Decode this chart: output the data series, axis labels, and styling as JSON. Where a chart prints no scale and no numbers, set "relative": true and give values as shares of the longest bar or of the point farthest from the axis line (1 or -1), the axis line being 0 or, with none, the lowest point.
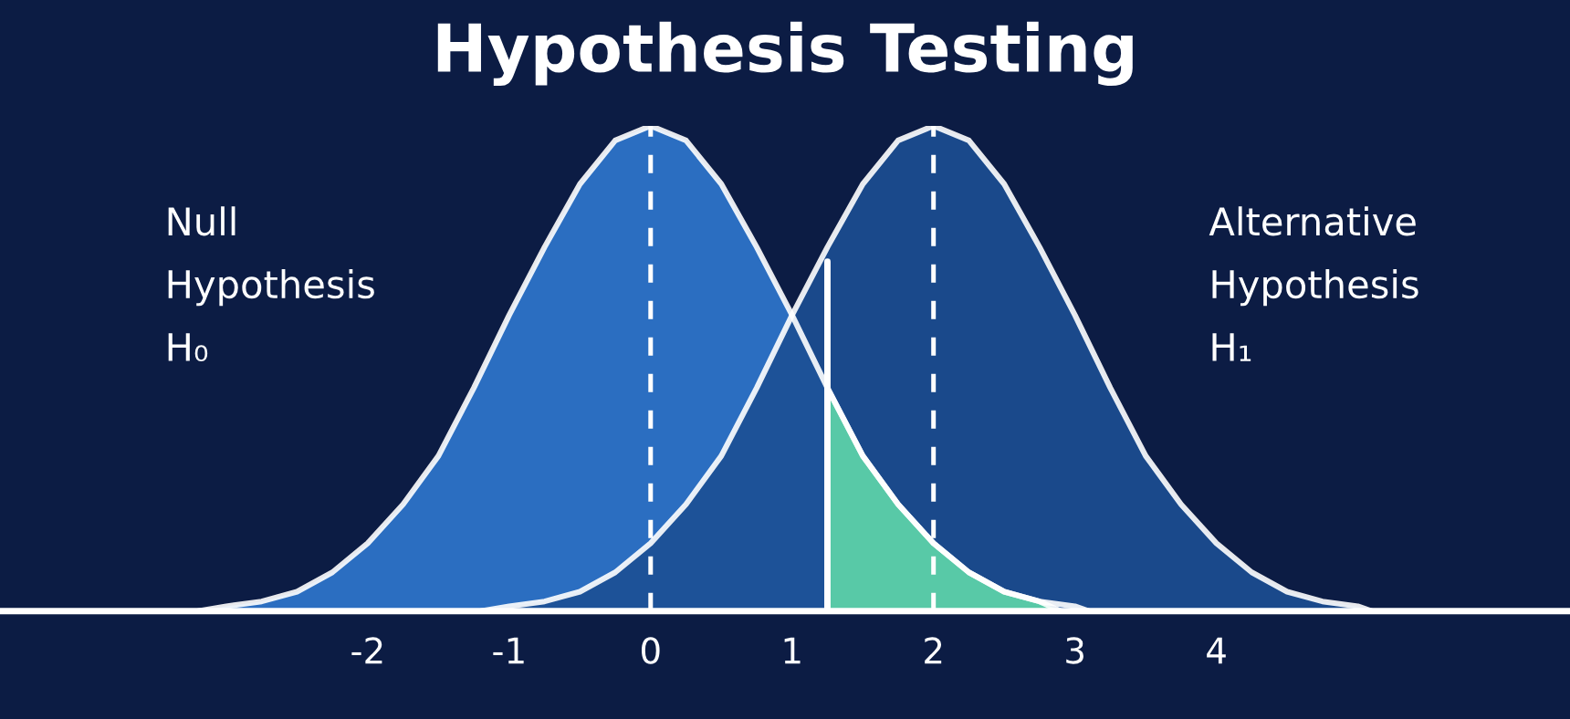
{
  "chart_data": {
    "type": "area",
    "title": "Hypothesis Testing",
    "relative": true,
    "xlim": [
      -4.6,
      6.5
    ],
    "xticks": [
      -2,
      -1,
      0,
      1,
      2,
      3,
      4
    ],
    "grid": false,
    "legend": false,
    "series": [
      {
        "color": "#2f78cf",
        "x": [
          -3.2,
          -3,
          -2.75,
          -2.5,
          -2.25,
          -2,
          -1.75,
          -1.5,
          -1.25,
          -1,
          -0.75,
          -0.5,
          -0.25,
          0,
          0.25,
          0.5,
          0.75,
          1,
          1.25,
          1.5,
          1.75,
          2,
          2.25,
          2.5,
          2.75,
          3,
          3.1
        ],
        "values": [
          0,
          0.01,
          0.02,
          0.04,
          0.08,
          0.14,
          0.22,
          0.32,
          0.46,
          0.61,
          0.75,
          0.88,
          0.97,
          1,
          0.97,
          0.88,
          0.75,
          0.61,
          0.46,
          0.32,
          0.22,
          0.14,
          0.08,
          0.04,
          0.02,
          0.01,
          0
        ]
      },
      {
        "color": "#1c4f93",
        "x": [
          -1.2,
          -1,
          -0.75,
          -0.5,
          -0.25,
          0,
          0.25,
          0.5,
          0.75,
          1,
          1.25,
          1.5,
          1.75,
          2,
          2.25,
          2.5,
          2.75,
          3,
          3.25,
          3.5,
          3.75,
          4,
          4.25,
          4.5,
          4.75,
          5,
          5.1
        ],
        "values": [
          0,
          0.01,
          0.02,
          0.04,
          0.08,
          0.14,
          0.22,
          0.32,
          0.46,
          0.61,
          0.75,
          0.88,
          0.97,
          1,
          0.97,
          0.88,
          0.75,
          0.61,
          0.46,
          0.32,
          0.22,
          0.14,
          0.08,
          0.04,
          0.02,
          0.01,
          0
        ]
      },
      {
        "color": "#5fd6a8",
        "x": [
          1.25,
          1.5,
          1.75,
          2,
          2.25,
          2.5,
          2.75,
          2.9
        ],
        "values": [
          0.46,
          0.32,
          0.22,
          0.14,
          0.08,
          0.04,
          0.02,
          0
        ]
      },
      {
        "type": "line",
        "color": "#ffffff",
        "x": [
          1.25,
          1.25
        ],
        "values": [
          0,
          0.72
        ]
      }
    ],
    "ref_lines": [
      {
        "axis": "x",
        "value": 0,
        "color": "#ffffff",
        "line_style": "dashed"
      },
      {
        "axis": "x",
        "value": 2,
        "color": "#ffffff",
        "line_style": "dashed"
      }
    ],
    "annotations": [
      "Null\nHypothesis\nH₀",
      "Alternative\nHypothesis\nH₁"
    ]
  }
}
